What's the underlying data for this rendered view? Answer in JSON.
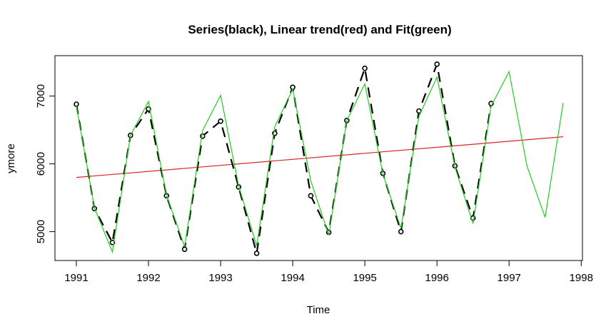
{
  "chart_data": {
    "type": "line",
    "title": "Series(black), Linear trend(red) and Fit(green)",
    "xlabel": "Time",
    "ylabel": "ymore",
    "xlim": [
      1991,
      1997.75
    ],
    "ylim": [
      4680,
      7480
    ],
    "x_ticks": [
      "1991",
      "1992",
      "1993",
      "1994",
      "1995",
      "1996",
      "1997",
      "1998"
    ],
    "x_tick_values": [
      1991,
      1992,
      1993,
      1994,
      1995,
      1996,
      1997,
      1998
    ],
    "y_ticks": [
      "5000",
      "6000",
      "7000"
    ],
    "y_tick_values": [
      5000,
      6000,
      7000
    ],
    "grid": false,
    "series": [
      {
        "color": "#000000",
        "style": "dashed-with-circles",
        "x": [
          1991,
          1991.25,
          1991.5,
          1991.75,
          1992,
          1992.25,
          1992.5,
          1992.75,
          1993,
          1993.25,
          1993.5,
          1993.75,
          1994,
          1994.25,
          1994.5,
          1994.75,
          1995,
          1995.25,
          1995.5,
          1995.75,
          1996,
          1996.25,
          1996.5,
          1996.75
        ],
        "values": [
          6880,
          5340,
          4840,
          6420,
          6810,
          5530,
          4740,
          6410,
          6630,
          5660,
          4680,
          6450,
          7130,
          5530,
          4990,
          6640,
          7410,
          5860,
          5000,
          6780,
          7470,
          5970,
          5200,
          6890
        ]
      },
      {
        "color": "#dd2222",
        "style": "solid",
        "x": [
          1991,
          1997.75
        ],
        "values": [
          5800,
          6400
        ]
      },
      {
        "color": "#22cc22",
        "style": "solid",
        "x": [
          1991,
          1991.25,
          1991.5,
          1991.75,
          1992,
          1992.25,
          1992.5,
          1992.75,
          1993,
          1993.25,
          1993.5,
          1993.75,
          1994,
          1994.25,
          1994.5,
          1994.75,
          1995,
          1995.25,
          1995.5,
          1995.75,
          1996,
          1996.25,
          1996.5,
          1996.75,
          1997,
          1997.25,
          1997.5,
          1997.75
        ],
        "values": [
          6850,
          5350,
          4700,
          6420,
          6920,
          5540,
          4780,
          6490,
          7010,
          5680,
          4790,
          6550,
          7100,
          5750,
          4950,
          6640,
          7180,
          5850,
          5050,
          6700,
          7280,
          5950,
          5120,
          6850,
          7360,
          5960,
          5210,
          6900
        ]
      }
    ]
  }
}
